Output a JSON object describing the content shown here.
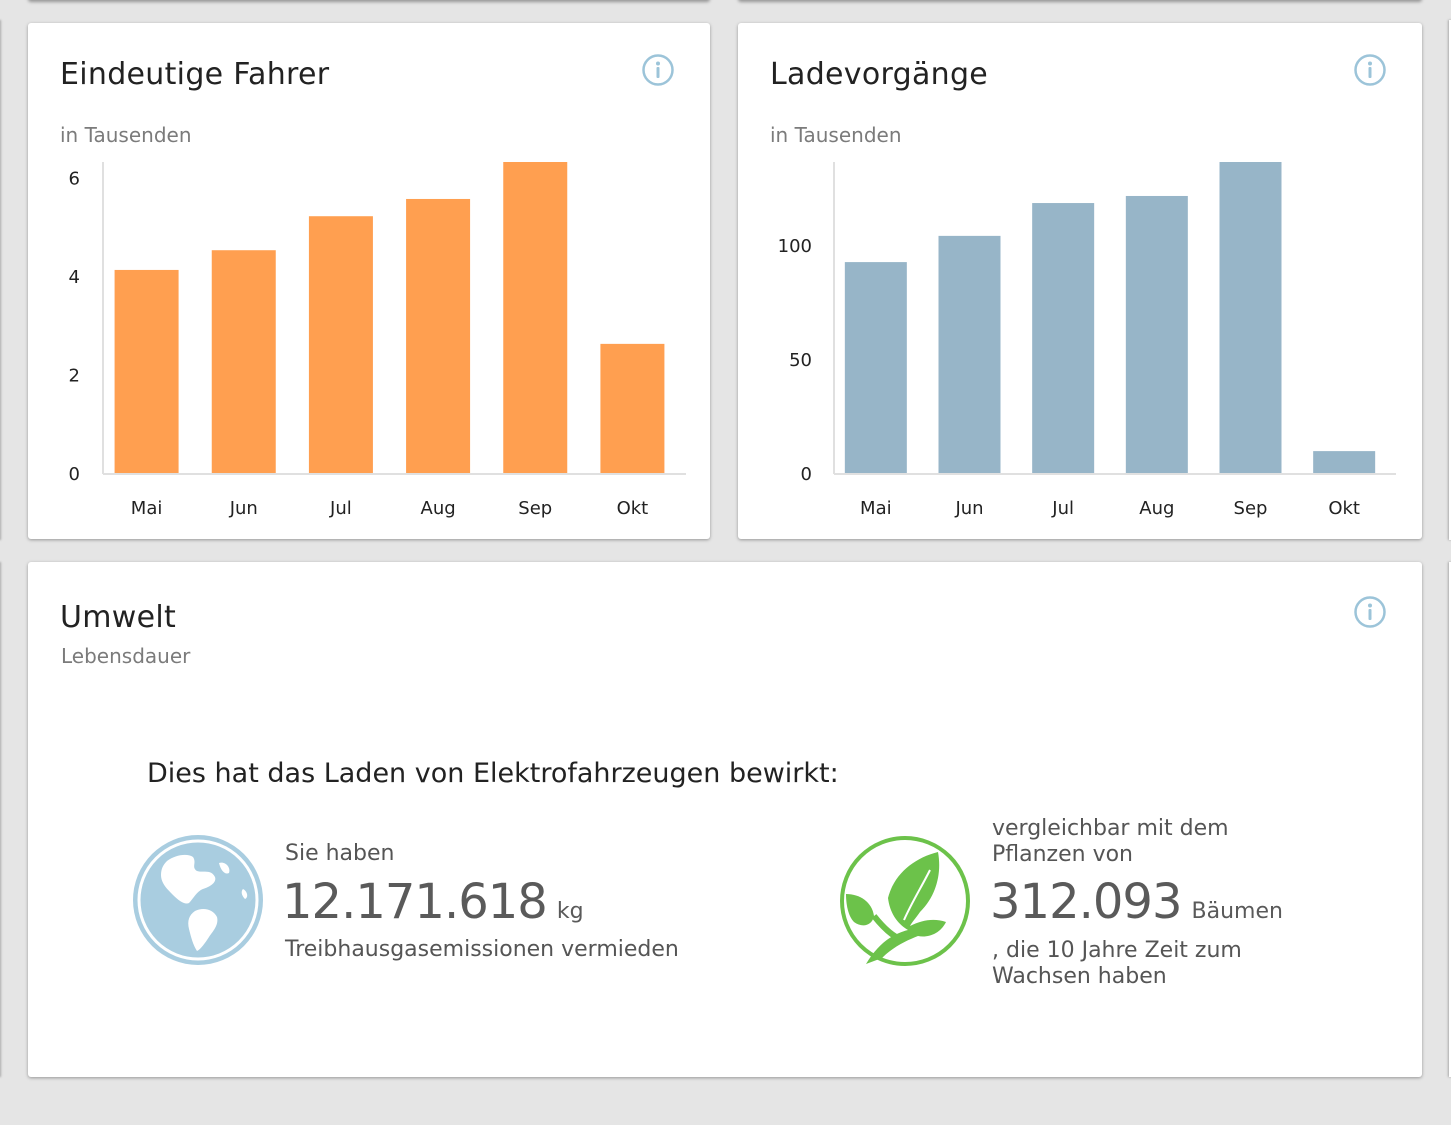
{
  "colors": {
    "orange": "#ff9f50",
    "blue": "#97b5c8",
    "info_icon": "#9cc4d9",
    "green": "#6cc24a",
    "globe": "#a9cde0"
  },
  "cards": {
    "drivers": {
      "title": "Eindeutige Fahrer",
      "subtitle": "in Tausenden",
      "info_icon": "info-icon"
    },
    "charging": {
      "title": "Ladevorgänge",
      "subtitle": "in Tausenden",
      "info_icon": "info-icon"
    },
    "environment": {
      "title": "Umwelt",
      "subtitle": "Lebensdauer",
      "info_icon": "info-icon",
      "heading": "Dies hat das Laden von Elektrofahrzeugen bewirkt:",
      "emissions": {
        "icon": "globe-icon",
        "pre": "Sie haben",
        "value": "12.171.618",
        "unit": "kg",
        "post": "Treibhausgasemissionen vermieden"
      },
      "trees": {
        "icon": "plant-icon",
        "pre_line1": "vergleichbar mit dem",
        "pre_line2": "Pflanzen von",
        "value": "312.093",
        "unit": "Bäumen",
        "post_line1": ", die 10 Jahre Zeit zum",
        "post_line2": "Wachsen haben"
      }
    }
  },
  "chart_data": [
    {
      "type": "bar",
      "title": "Eindeutige Fahrer",
      "subtitle": "in Tausenden",
      "categories": [
        "Mai",
        "Jun",
        "Jul",
        "Aug",
        "Sep",
        "Okt"
      ],
      "values": [
        4.12,
        4.52,
        5.21,
        5.56,
        6.31,
        2.62
      ],
      "yticks": [
        0,
        2,
        4,
        6
      ],
      "ylim": [
        0,
        6.31
      ],
      "xlabel": "",
      "ylabel": "",
      "grid": false,
      "color": "#ff9f50"
    },
    {
      "type": "bar",
      "title": "Ladevorgänge",
      "subtitle": "in Tausenden",
      "categories": [
        "Mai",
        "Jun",
        "Jul",
        "Aug",
        "Sep",
        "Okt"
      ],
      "values": [
        92.5,
        104,
        118.4,
        121.5,
        136.4,
        9.6
      ],
      "yticks": [
        0,
        50,
        100
      ],
      "ylim": [
        0,
        136.4
      ],
      "xlabel": "",
      "ylabel": "",
      "grid": false,
      "color": "#97b5c8"
    }
  ]
}
